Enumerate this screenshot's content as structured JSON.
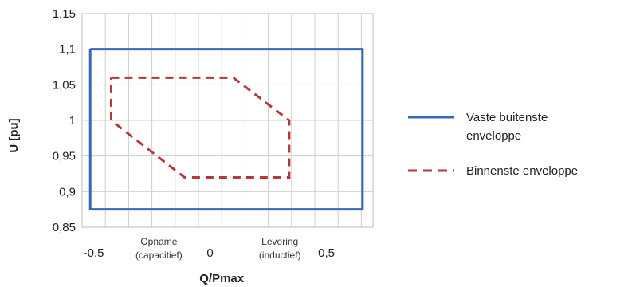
{
  "chart_data": {
    "type": "line",
    "title": "",
    "xlabel": "Q/Pmax",
    "ylabel": "U [pu]",
    "xlim": [
      -0.55,
      0.7
    ],
    "ylim": [
      0.85,
      1.15
    ],
    "xticks": [
      -0.5,
      0,
      0.5
    ],
    "xtick_labels": [
      "-0,5",
      "0",
      "0,5"
    ],
    "yticks": [
      0.85,
      0.9,
      0.95,
      1.0,
      1.05,
      1.1,
      1.15
    ],
    "ytick_labels": [
      "0,85",
      "0,9",
      "0,95",
      "1",
      "1,05",
      "1,1",
      "1,15"
    ],
    "grid": true,
    "legend_position": "right",
    "annotations": [
      {
        "lines": [
          "Opname",
          "(capacitief)"
        ],
        "x": -0.22
      },
      {
        "lines": [
          "Levering",
          "(inductief)"
        ],
        "x": 0.3
      }
    ],
    "series": [
      {
        "name": "Vaste buitenste enveloppe",
        "style": "solid",
        "color": "#3a67b5",
        "x": [
          -0.515,
          0.655,
          0.655,
          -0.515,
          -0.515
        ],
        "y": [
          1.1,
          1.1,
          0.875,
          0.875,
          1.1
        ]
      },
      {
        "name": "Binnenste enveloppe",
        "style": "dashed",
        "color": "#b23a3a",
        "x": [
          -0.425,
          0.1,
          0.34,
          0.34,
          0.085,
          -0.11,
          -0.425,
          -0.425
        ],
        "y": [
          1.06,
          1.06,
          1.0,
          0.92,
          0.92,
          0.92,
          1.0,
          1.06
        ]
      }
    ],
    "legend_entries": [
      {
        "lines": [
          "Vaste buitenste",
          "enveloppe"
        ]
      },
      {
        "lines": [
          "Binnenste enveloppe"
        ]
      }
    ]
  }
}
